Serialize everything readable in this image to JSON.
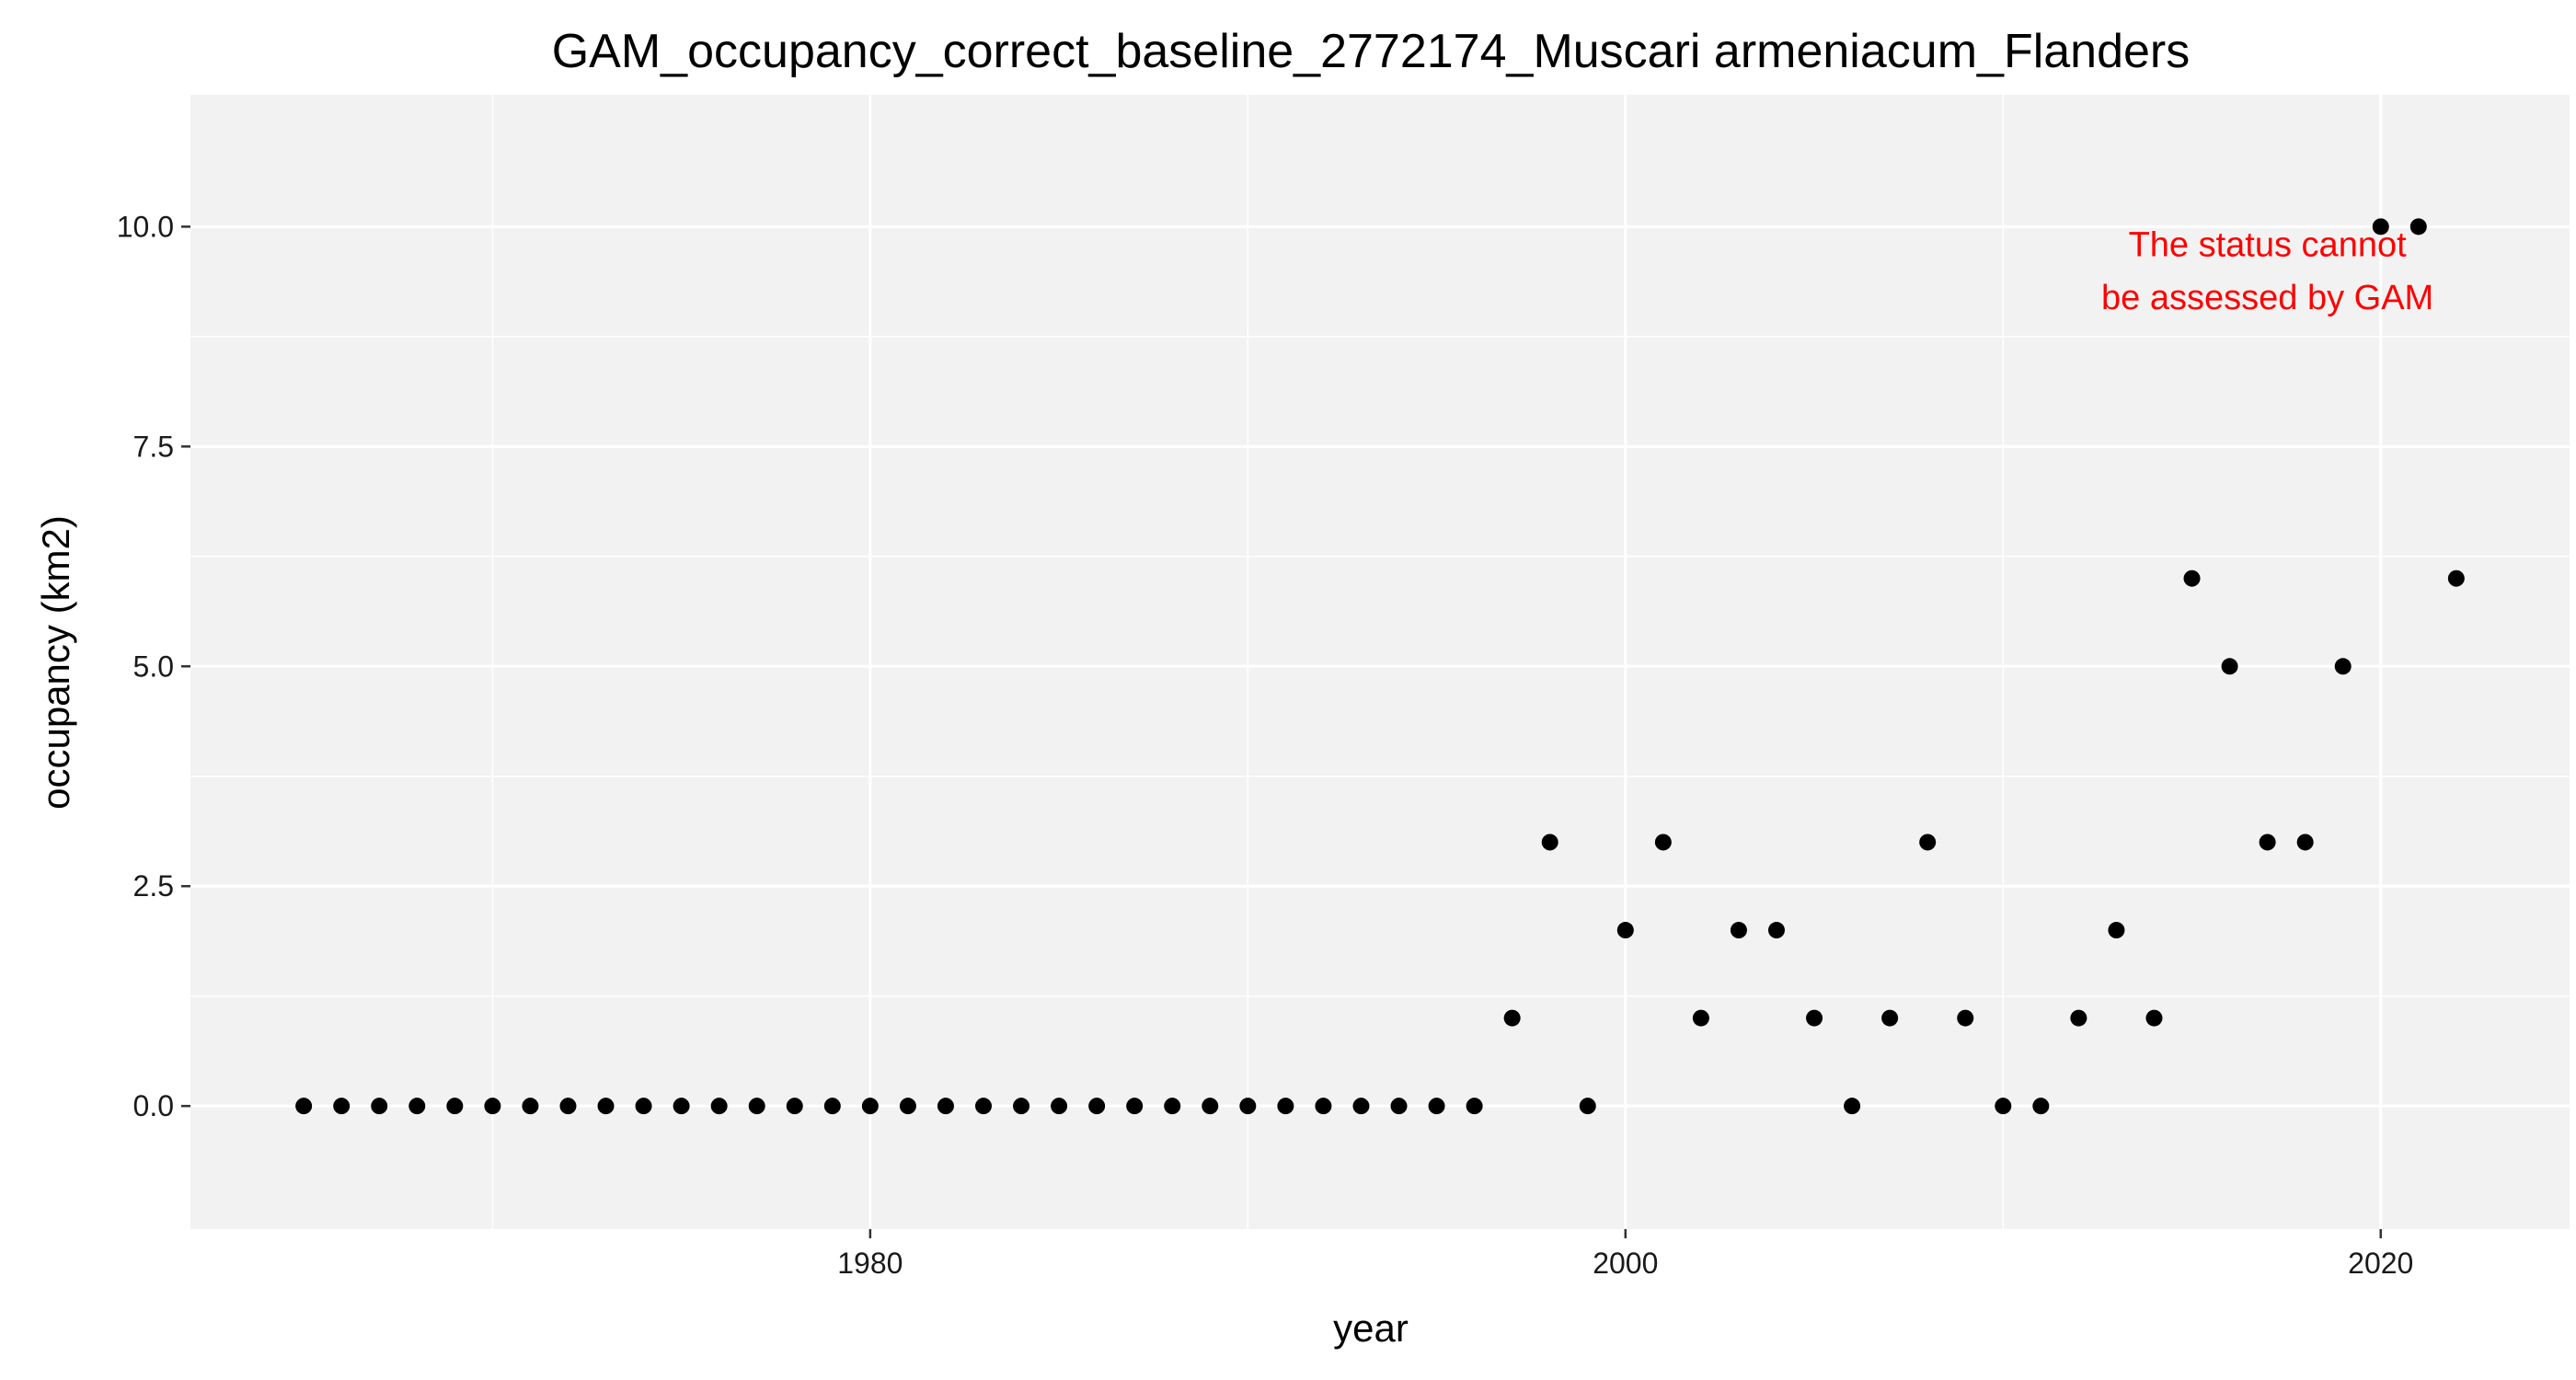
{
  "chart_data": {
    "type": "scatter",
    "title": "GAM_occupancy_correct_baseline_2772174_Muscari armeniacum_Flanders",
    "xlabel": "year",
    "ylabel": "occupancy (km2)",
    "xlim": [
      1962,
      2025
    ],
    "ylim": [
      -1.4,
      11.5
    ],
    "x_ticks": [
      1980,
      2000,
      2020
    ],
    "x_tick_labels": [
      "1980",
      "2000",
      "2020"
    ],
    "x_minor_ticks": [
      1970,
      1990,
      2010
    ],
    "y_ticks": [
      0,
      2.5,
      5,
      7.5,
      10
    ],
    "y_tick_labels": [
      "0.0",
      "2.5",
      "5.0",
      "7.5",
      "10.0"
    ],
    "y_minor_ticks": [
      1.25,
      3.75,
      6.25,
      8.75
    ],
    "grid": true,
    "panel_background": "#f2f2f2",
    "grid_color": "#ffffff",
    "point_color": "#000000",
    "annotation": {
      "lines": [
        "The status cannot",
        "be assessed by GAM"
      ],
      "color": "#ff0000",
      "x": 2017,
      "y": [
        9.8,
        9.2
      ]
    },
    "x": [
      1965,
      1966,
      1967,
      1968,
      1969,
      1970,
      1971,
      1972,
      1973,
      1974,
      1975,
      1976,
      1977,
      1978,
      1979,
      1980,
      1981,
      1982,
      1983,
      1984,
      1985,
      1986,
      1987,
      1988,
      1989,
      1990,
      1991,
      1992,
      1993,
      1994,
      1995,
      1996,
      1997,
      1998,
      1999,
      2000,
      2001,
      2002,
      2003,
      2004,
      2005,
      2006,
      2007,
      2008,
      2009,
      2010,
      2011,
      2012,
      2013,
      2014,
      2015,
      2016,
      2017,
      2018,
      2019,
      2020,
      2021,
      2022
    ],
    "y": [
      0,
      0,
      0,
      0,
      0,
      0,
      0,
      0,
      0,
      0,
      0,
      0,
      0,
      0,
      0,
      0,
      0,
      0,
      0,
      0,
      0,
      0,
      0,
      0,
      0,
      0,
      0,
      0,
      0,
      0,
      0,
      0,
      1,
      3,
      0,
      2,
      3,
      1,
      2,
      2,
      1,
      0,
      1,
      3,
      1,
      0,
      0,
      1,
      2,
      1,
      6,
      5,
      3,
      3,
      5,
      10,
      10,
      6
    ]
  }
}
